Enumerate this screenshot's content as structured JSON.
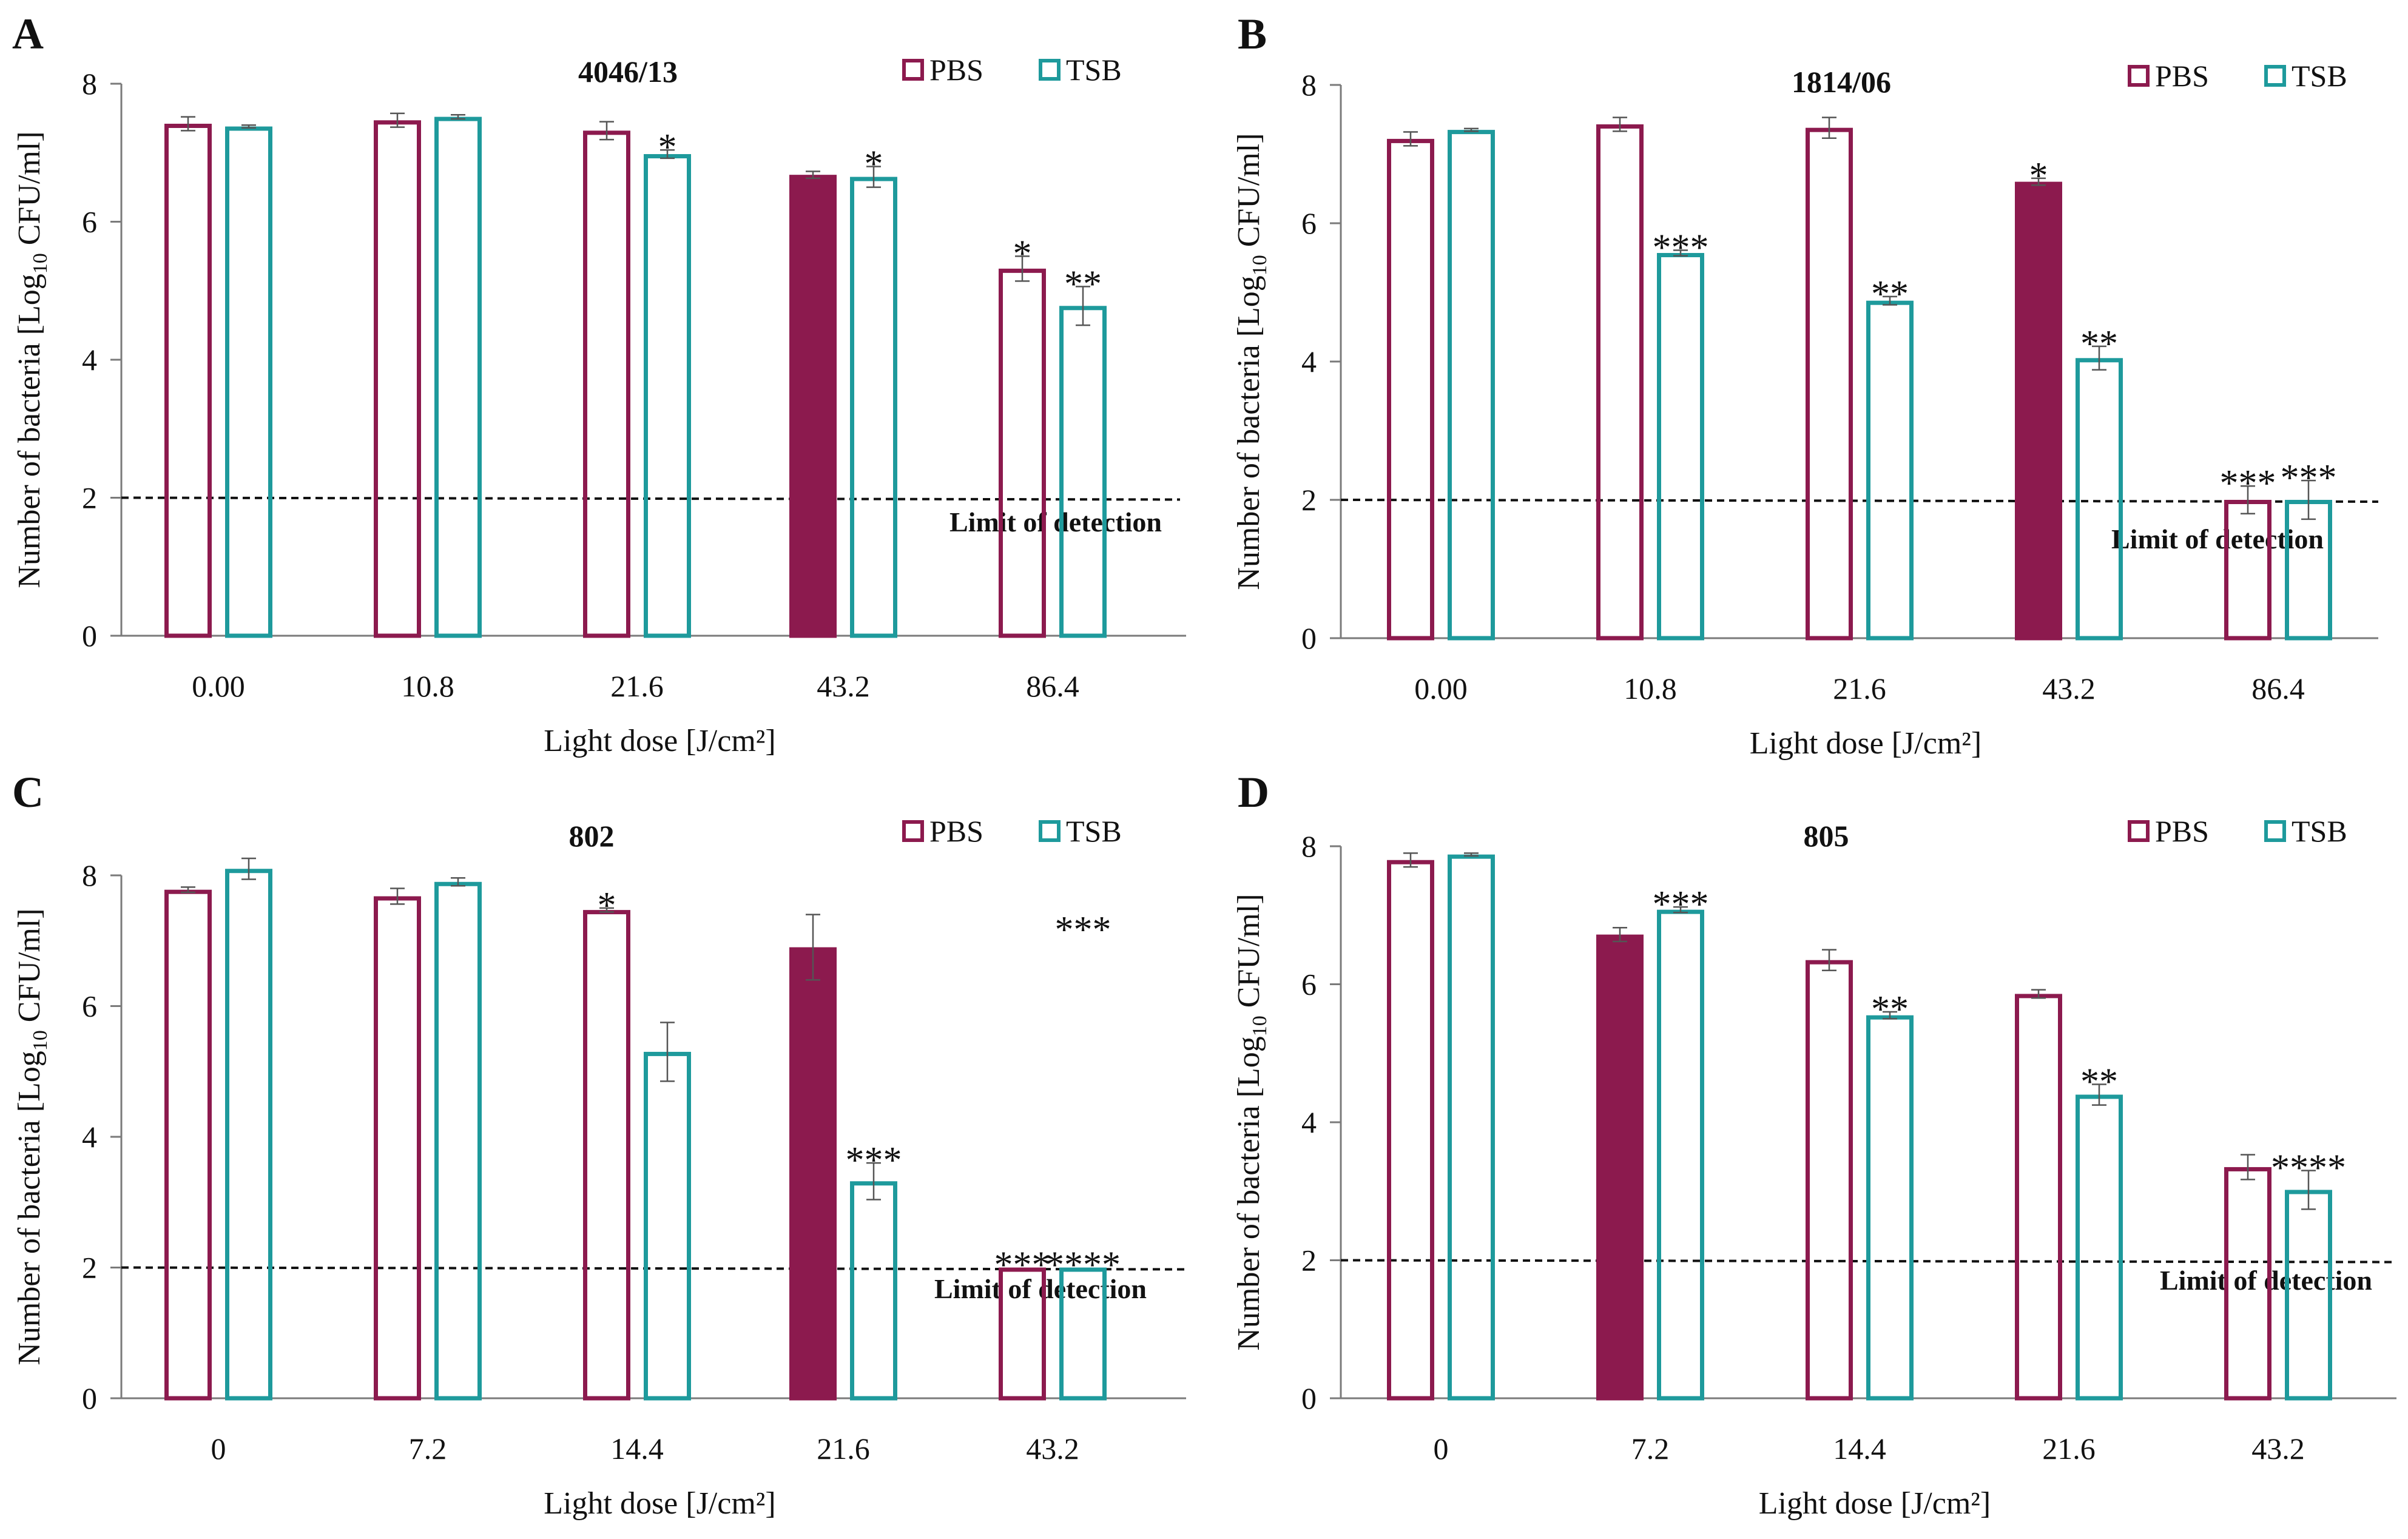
{
  "figure": {
    "background": "#ffffff"
  },
  "colors": {
    "pbs": "#8c1a4e",
    "tsb": "#1e9a9c",
    "axis": "#7a7a7a",
    "text": "#111111",
    "lod": "#111111"
  },
  "legend": {
    "pbs": "PBS",
    "tsb": "TSB"
  },
  "chart_data": [
    {
      "panel": "A",
      "title": "4046/13",
      "type": "bar",
      "xlabel": "Light dose [J/cm²]",
      "ylabel_main": "Number of bacteria [Log",
      "ylabel_sub": "10",
      "ylabel_tail": " CFU/ml]",
      "ylim": [
        0,
        8
      ],
      "yticks": [
        "0",
        "2",
        "4",
        "6",
        "8"
      ],
      "categories": [
        "0.00",
        "10.8",
        "21.6",
        "43.2",
        "86.4"
      ],
      "series": [
        {
          "name": "PBS",
          "values": [
            7.42,
            7.47,
            7.32,
            6.68,
            5.32
          ],
          "errors": [
            0.1,
            0.1,
            0.13,
            0.05,
            0.18
          ],
          "filled": [
            false,
            false,
            false,
            true,
            false
          ],
          "sig": [
            "",
            "",
            "",
            "",
            "*"
          ]
        },
        {
          "name": "TSB",
          "values": [
            7.38,
            7.52,
            6.98,
            6.65,
            4.78
          ],
          "errors": [
            0.02,
            0.03,
            0.06,
            0.15,
            0.28
          ],
          "filled": [
            false,
            false,
            false,
            false,
            false
          ],
          "sig": [
            "",
            "",
            "*",
            "*",
            "**"
          ]
        }
      ],
      "lod": {
        "value": 2,
        "label": "Limit of detection"
      }
    },
    {
      "panel": "B",
      "title": "1814/06",
      "type": "bar",
      "xlabel": "Light dose [J/cm²]",
      "ylabel_main": "Number of bacteria [Log",
      "ylabel_sub": "10",
      "ylabel_tail": " CFU/ml]",
      "ylim": [
        0,
        8
      ],
      "yticks": [
        "0",
        "2",
        "4",
        "6",
        "8"
      ],
      "categories": [
        "0.00",
        "10.8",
        "21.6",
        "43.2",
        "86.4"
      ],
      "series": [
        {
          "name": "PBS",
          "values": [
            7.22,
            7.43,
            7.38,
            6.6,
            2.0
          ],
          "errors": [
            0.1,
            0.1,
            0.15,
            0.05,
            0.2
          ],
          "filled": [
            false,
            false,
            false,
            true,
            false
          ],
          "sig": [
            "",
            "",
            "",
            "*",
            "***"
          ]
        },
        {
          "name": "TSB",
          "values": [
            7.35,
            5.57,
            4.88,
            4.05,
            2.0
          ],
          "errors": [
            0.02,
            0.04,
            0.06,
            0.17,
            0.28
          ],
          "filled": [
            false,
            false,
            false,
            false,
            false
          ],
          "sig": [
            "",
            "***",
            "**",
            "**",
            "***"
          ]
        }
      ],
      "lod": {
        "value": 2,
        "label": "Limit of detection"
      }
    },
    {
      "panel": "C",
      "title": "802",
      "type": "bar",
      "xlabel": "Light dose [J/cm²]",
      "ylabel_main": "Number of bacteria [Log",
      "ylabel_sub": "10",
      "ylabel_tail": " CFU/ml]",
      "ylim": [
        0,
        8
      ],
      "yticks": [
        "0",
        "2",
        "4",
        "6",
        "8"
      ],
      "categories": [
        "0",
        "7.2",
        "14.4",
        "21.6",
        "43.2"
      ],
      "series": [
        {
          "name": "PBS",
          "values": [
            7.78,
            7.68,
            7.47,
            6.9,
            2.0
          ],
          "errors": [
            0.04,
            0.12,
            0.03,
            0.5,
            0.0
          ],
          "filled": [
            false,
            false,
            false,
            true,
            false
          ],
          "sig": [
            "",
            "",
            "*",
            "",
            "***"
          ]
        },
        {
          "name": "TSB",
          "values": [
            8.1,
            7.9,
            5.3,
            3.32,
            2.0
          ],
          "errors": [
            0.16,
            0.06,
            0.45,
            0.28,
            0.0
          ],
          "filled": [
            false,
            false,
            false,
            false,
            false
          ],
          "sig": [
            "",
            "",
            "",
            "***",
            "****"
          ]
        }
      ],
      "extra_annotation": {
        "text": "***",
        "category": "43.2",
        "value": 7.35
      },
      "lod": {
        "value": 2,
        "label": "Limit of detection"
      }
    },
    {
      "panel": "D",
      "title": "805",
      "type": "bar",
      "xlabel": "Light dose [J/cm²]",
      "ylabel_main": "Number of bacteria [Log",
      "ylabel_sub": "10",
      "ylabel_tail": " CFU/ml]",
      "ylim": [
        0,
        8
      ],
      "yticks": [
        "0",
        "2",
        "4",
        "6",
        "8"
      ],
      "categories": [
        "0",
        "7.2",
        "14.4",
        "21.6",
        "43.2"
      ],
      "series": [
        {
          "name": "PBS",
          "values": [
            7.8,
            6.72,
            6.35,
            5.86,
            3.35
          ],
          "errors": [
            0.1,
            0.1,
            0.15,
            0.06,
            0.18
          ],
          "filled": [
            false,
            true,
            false,
            false,
            false
          ],
          "sig": [
            "",
            "",
            "",
            "",
            ""
          ]
        },
        {
          "name": "TSB",
          "values": [
            7.88,
            7.08,
            5.55,
            4.4,
            3.02
          ],
          "errors": [
            0.02,
            0.04,
            0.05,
            0.15,
            0.28
          ],
          "filled": [
            false,
            false,
            false,
            false,
            false
          ],
          "sig": [
            "",
            "***",
            "**",
            "**",
            "****"
          ]
        }
      ],
      "lod": {
        "value": 2,
        "label": "Limit of detection"
      }
    }
  ]
}
